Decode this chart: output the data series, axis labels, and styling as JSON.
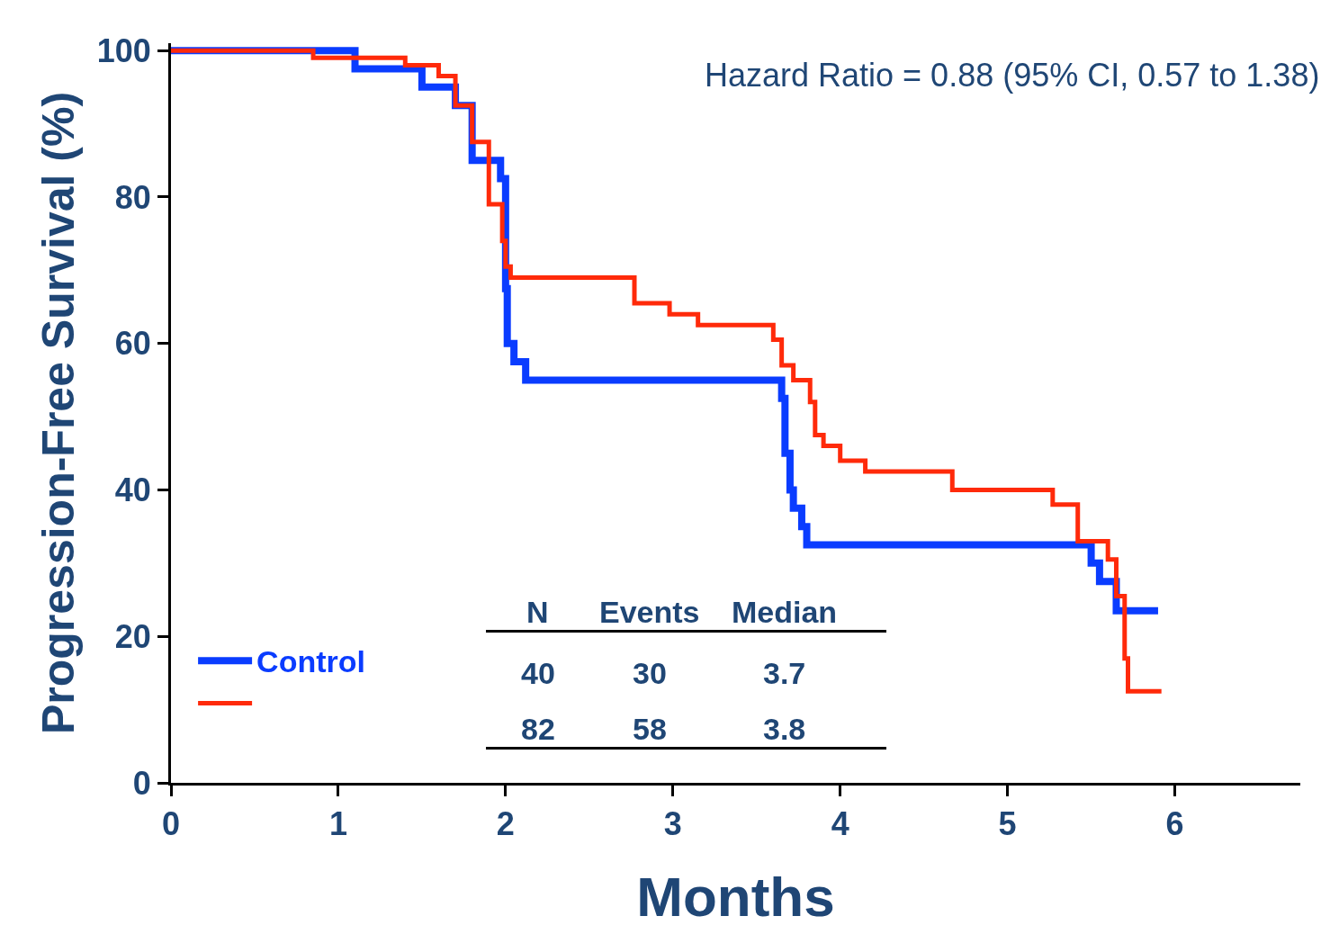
{
  "chart_data": {
    "type": "step",
    "xlabel": "Months",
    "ylabel": "Progression-Free Survival (%)",
    "xlim": [
      0,
      6.75
    ],
    "xticks": [
      0,
      1,
      2,
      3,
      4,
      5,
      6
    ],
    "ylim": [
      0,
      101
    ],
    "yticks": [
      0,
      20,
      40,
      60,
      80,
      100
    ],
    "grid": false,
    "marker": "none",
    "legend": "bottom left",
    "series": [
      {
        "name": "Control",
        "color": "#0a3cff",
        "x": [
          0,
          1.1,
          1.5,
          1.7,
          1.8,
          1.97,
          2.0,
          2.01,
          2.05,
          2.12,
          3.65,
          3.67,
          3.7,
          3.72,
          3.77,
          3.8,
          5.45,
          5.5,
          5.55,
          5.65,
          5.9
        ],
        "values": [
          100,
          97.5,
          95,
          92.5,
          85,
          82.5,
          67.5,
          60,
          57.5,
          55,
          52.5,
          45,
          40,
          37.5,
          35,
          32.5,
          32.5,
          30,
          27.5,
          23.5,
          23.5
        ]
      },
      {
        "color": "#ff2a0a",
        "x": [
          0,
          0.85,
          1.4,
          1.6,
          1.7,
          1.8,
          1.9,
          1.98,
          2.0,
          2.03,
          2.77,
          2.98,
          3.15,
          3.6,
          3.65,
          3.72,
          3.82,
          3.85,
          3.9,
          4.0,
          4.15,
          4.67,
          5.27,
          5.42,
          5.6,
          5.65,
          5.7,
          5.72,
          5.92
        ],
        "values": [
          100,
          99,
          98,
          96.5,
          92.5,
          87.5,
          79,
          74,
          70.5,
          69,
          65.5,
          64,
          62.5,
          60.5,
          57,
          55,
          52,
          47.5,
          46,
          44,
          42.5,
          40,
          38,
          33,
          30.5,
          25.5,
          17,
          12.5,
          12.5
        ]
      }
    ],
    "annotations": [
      "Hazard Ratio = 0.88 (95% CI, 0.57 to 1.38)",
      "N",
      "Events",
      "Median",
      "40",
      "30",
      "3.7",
      "82",
      "58",
      "3.8"
    ]
  }
}
